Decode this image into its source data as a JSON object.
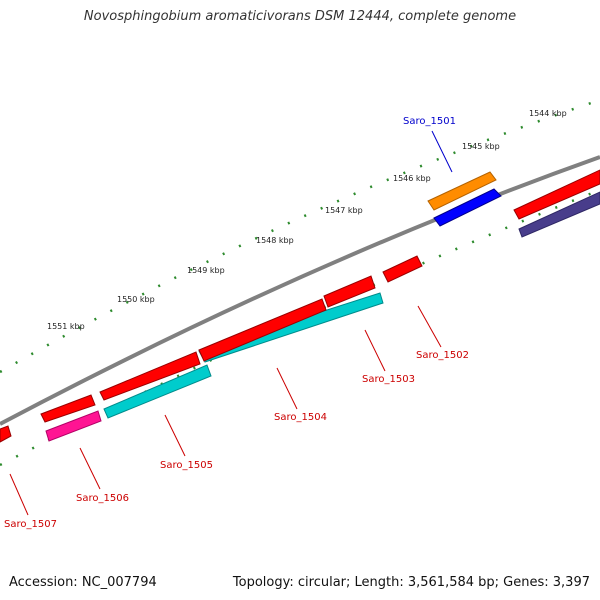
{
  "title": "Novosphingobium aromaticivorans DSM 12444, complete genome",
  "footer": {
    "accession": "Accession: NC_007794",
    "info": "Topology: circular; Length: 3,561,584 bp; Genes: 3,397"
  },
  "colors": {
    "backbone": "#808080",
    "ticks": "#2e8b2e",
    "label_red": "#cc0000",
    "label_blue": "#0000cc"
  },
  "ticks": [
    "1544 kbp",
    "1545 kbp",
    "1546 kbp",
    "1547 kbp",
    "1548 kbp",
    "1549 kbp",
    "1550 kbp",
    "1551 kbp"
  ],
  "genes": [
    {
      "id": "Saro_1501",
      "color": "#ff8c00",
      "label_color": "#0000cc"
    },
    {
      "id": "Saro_1501b",
      "color": "#0000ff",
      "label_color": "#0000cc"
    },
    {
      "id": "Saro_1500",
      "color": "#ff0000",
      "label_color": "#cc0000"
    },
    {
      "id": "Saro_1500b",
      "color": "#483d8b",
      "label_color": "#cc0000"
    },
    {
      "id": "Saro_1502",
      "color": "#ff0000",
      "label_color": "#cc0000"
    },
    {
      "id": "Saro_1503",
      "color": "#ff0000",
      "label_color": "#cc0000"
    },
    {
      "id": "Saro_1503b",
      "color": "#00cccc",
      "label_color": "#cc0000"
    },
    {
      "id": "Saro_1504",
      "color": "#ff0000",
      "label_color": "#cc0000"
    },
    {
      "id": "Saro_1505",
      "color": "#ff0000",
      "label_color": "#cc0000"
    },
    {
      "id": "Saro_1506",
      "color": "#ff0000",
      "label_color": "#cc0000"
    },
    {
      "id": "Saro_1506b",
      "color": "#ff1493",
      "label_color": "#cc0000"
    },
    {
      "id": "Saro_1507",
      "color": "#ff0000",
      "label_color": "#cc0000"
    }
  ],
  "labels": [
    "Saro_1501",
    "Saro_1502",
    "Saro_1503",
    "Saro_1504",
    "Saro_1505",
    "Saro_1506",
    "Saro_1507"
  ]
}
